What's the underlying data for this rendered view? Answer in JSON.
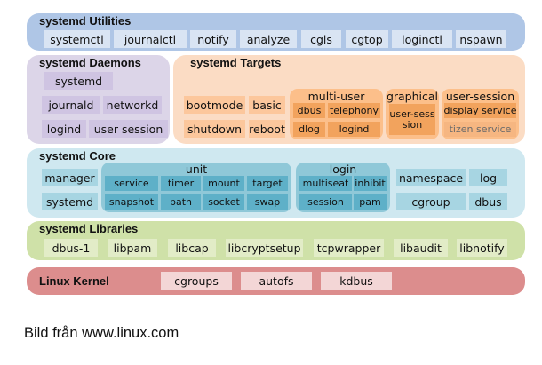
{
  "utilities": {
    "title": "systemd Utilities",
    "items": [
      "systemctl",
      "journalctl",
      "notify",
      "analyze",
      "cgls",
      "cgtop",
      "loginctl",
      "nspawn"
    ]
  },
  "daemons": {
    "title": "systemd Daemons",
    "systemd": "systemd",
    "journald": "journald",
    "networkd": "networkd",
    "logind": "logind",
    "user_session": "user session"
  },
  "targets": {
    "title": "systemd Targets",
    "bootmode": "bootmode",
    "basic": "basic",
    "shutdown": "shutdown",
    "reboot": "reboot",
    "multi_user": {
      "title": "multi-user",
      "items": [
        "dbus",
        "telephony",
        "dlog",
        "logind"
      ]
    },
    "graphical": {
      "title": "graphical",
      "item": "user-sesssion"
    },
    "user_session": {
      "title": "user-session",
      "items": [
        "display service",
        "tizen service"
      ]
    }
  },
  "core": {
    "title": "systemd Core",
    "manager": "manager",
    "systemd": "systemd",
    "unit": {
      "title": "unit",
      "items": [
        "service",
        "timer",
        "mount",
        "target",
        "snapshot",
        "path",
        "socket",
        "swap"
      ]
    },
    "login": {
      "title": "login",
      "items": [
        "multiseat",
        "inhibit",
        "session",
        "pam"
      ]
    },
    "namespace": "namespace",
    "log": "log",
    "cgroup": "cgroup",
    "dbus": "dbus"
  },
  "libraries": {
    "title": "systemd Libraries",
    "items": [
      "dbus-1",
      "libpam",
      "libcap",
      "libcryptsetup",
      "tcpwrapper",
      "libaudit",
      "libnotify"
    ]
  },
  "kernel": {
    "title": "Linux Kernel",
    "items": [
      "cgroups",
      "autofs",
      "kdbus"
    ]
  },
  "caption": "Bild från www.linux.com",
  "colors": {
    "utilities": "#afc6e6",
    "daemons": "#dcd5e8",
    "targets": "#fbdcc4",
    "core": "#cfe8f0",
    "libraries": "#cfe1a8",
    "kernel": "#dc8d8d"
  }
}
